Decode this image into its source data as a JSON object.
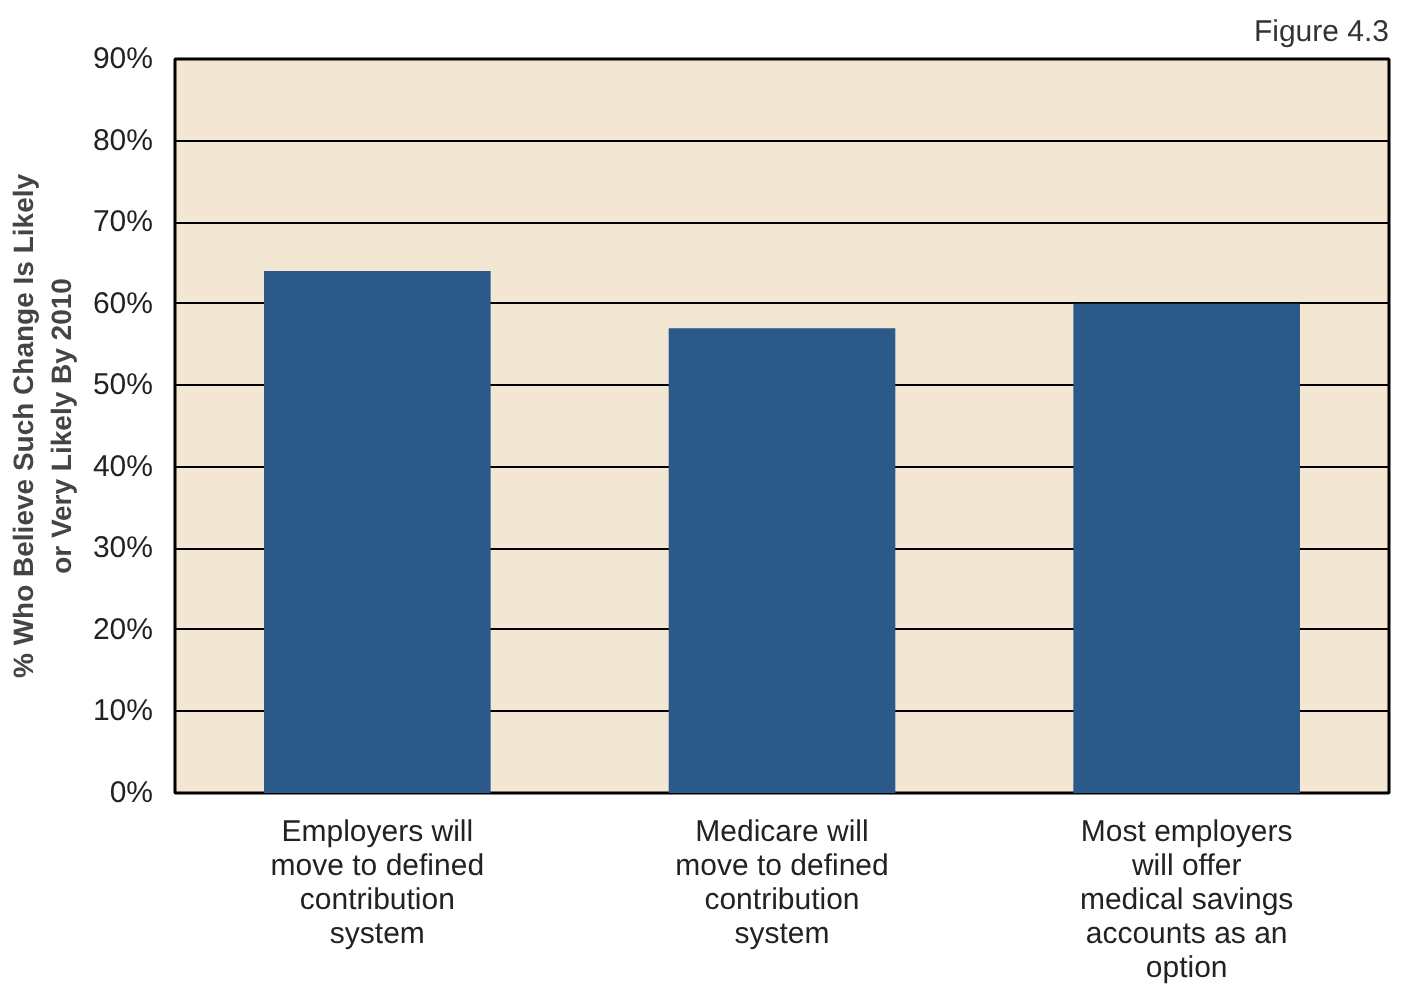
{
  "chart_data": {
    "type": "bar",
    "ylabel": "% Who Believe Such Change Is Likely or Very Likely By 2010",
    "annotations": [
      "Figure 4.3"
    ],
    "categories": [
      "Employers will move to defined contribution system",
      "Medicare will move to defined contribution system",
      "Most employers will offer medical savings accounts as an option"
    ],
    "values": [
      64,
      57,
      60
    ],
    "color": "#2b5a8a",
    "ylim": [
      0,
      90
    ],
    "yticks": [
      {
        "value": 0,
        "label": "0%"
      },
      {
        "value": 10,
        "label": "10%"
      },
      {
        "value": 20,
        "label": "20%"
      },
      {
        "value": 30,
        "label": "30%"
      },
      {
        "value": 40,
        "label": "40%"
      },
      {
        "value": 50,
        "label": "50%"
      },
      {
        "value": 60,
        "label": "60%"
      },
      {
        "value": 70,
        "label": "70%"
      },
      {
        "value": 80,
        "label": "80%"
      },
      {
        "value": 90,
        "label": "90%"
      }
    ],
    "grid": "y"
  }
}
